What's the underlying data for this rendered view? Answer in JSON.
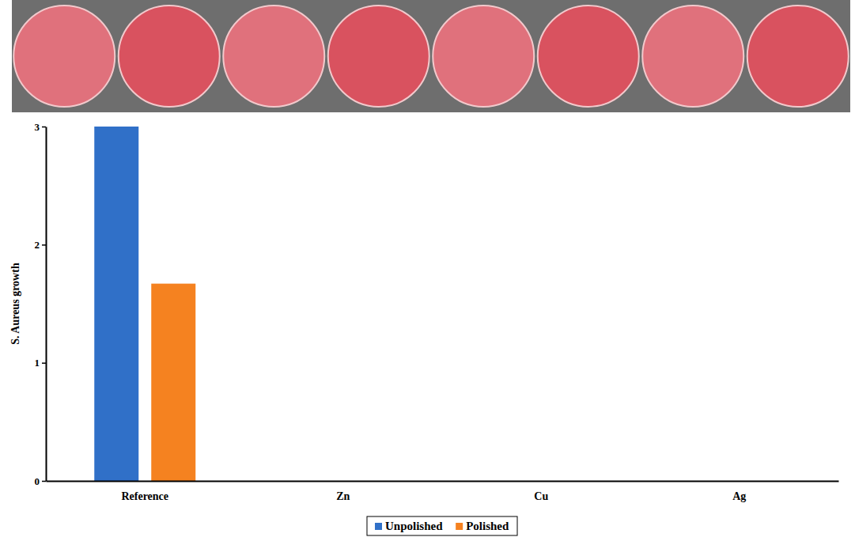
{
  "chart_data": {
    "type": "bar",
    "y_label": "S. Aureus growth",
    "categories": [
      "Reference",
      "Zn",
      "Cu",
      "Ag"
    ],
    "series": [
      {
        "name": "Unpolished",
        "color": "#3070c8",
        "values": [
          3,
          0,
          0,
          0
        ]
      },
      {
        "name": "Polished",
        "color": "#f58220",
        "values": [
          1.67,
          0,
          0,
          0
        ]
      }
    ],
    "ylim": [
      0,
      3
    ],
    "yticks": [
      0,
      1,
      2,
      3
    ],
    "grid": false,
    "legend": "bottom"
  }
}
